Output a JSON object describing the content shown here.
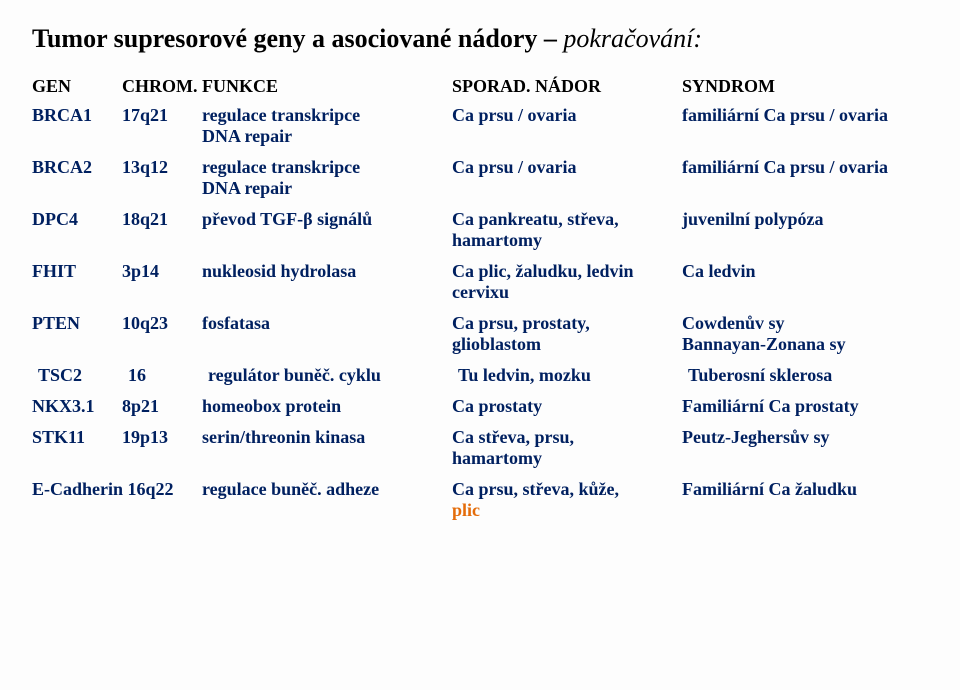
{
  "title_main": "Tumor supresorové geny a asociované nádory – ",
  "title_cont": "pokračování:",
  "header": {
    "gen": "GEN",
    "chrom": "CHROM.",
    "func": "FUNKCE",
    "nador": "SPORAD. NÁDOR",
    "syn": "SYNDROM"
  },
  "rows": [
    {
      "gen": "BRCA1",
      "chrom": "17q21",
      "func": [
        "regulace transkripce",
        "DNA repair"
      ],
      "nador": [
        "Ca prsu / ovaria"
      ],
      "syn": [
        "familiární Ca prsu / ovaria"
      ]
    },
    {
      "gen": "BRCA2",
      "chrom": "13q12",
      "func": [
        "regulace transkripce",
        "DNA repair"
      ],
      "nador": [
        "Ca prsu / ovaria"
      ],
      "syn": [
        "familiární Ca prsu / ovaria"
      ]
    },
    {
      "gen": "DPC4",
      "chrom": "18q21",
      "func": [
        "převod TGF-β signálů"
      ],
      "nador": [
        "Ca pankreatu, střeva,",
        "hamartomy"
      ],
      "syn": [
        "juvenilní polypóza"
      ]
    },
    {
      "gen": "FHIT",
      "chrom": "3p14",
      "func": [
        "nukleosid hydrolasa"
      ],
      "nador": [
        "Ca plic, žaludku, ledvin",
        "cervixu"
      ],
      "syn": [
        "Ca ledvin"
      ]
    },
    {
      "gen": "PTEN",
      "chrom": "10q23",
      "func": [
        "fosfatasa"
      ],
      "nador": [
        "Ca prsu, prostaty,",
        "glioblastom"
      ],
      "syn": [
        "Cowdenův sy",
        "Bannayan-Zonana sy"
      ]
    },
    {
      "gen": "TSC2",
      "chrom": "16",
      "indent": true,
      "func": [
        "regulátor buněč. cyklu"
      ],
      "nador": [
        "Tu ledvin, mozku"
      ],
      "syn": [
        "Tuberosní sklerosa"
      ]
    },
    {
      "gen": "NKX3.1",
      "chrom": "8p21",
      "func": [
        "homeobox protein"
      ],
      "nador": [
        "Ca prostaty"
      ],
      "syn": [
        "Familiární Ca prostaty"
      ]
    },
    {
      "gen": "STK11",
      "chrom": "19p13",
      "func": [
        "serin/threonin kinasa"
      ],
      "nador": [
        "Ca střeva, prsu,",
        "hamartomy"
      ],
      "syn": [
        "Peutz-Jeghersův sy"
      ]
    },
    {
      "gen": "E-Cadherin",
      "chrom": "16q22",
      "wideGen": true,
      "func": [
        "regulace buněč. adheze"
      ],
      "nador": [
        "Ca prsu, střeva, kůže,",
        {
          "text": "plic",
          "orange": true
        }
      ],
      "syn": [
        "Familiární Ca žaludku"
      ]
    }
  ]
}
